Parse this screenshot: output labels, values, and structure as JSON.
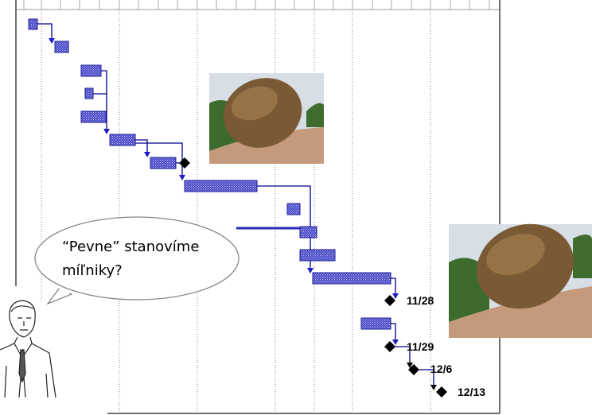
{
  "bubble": {
    "lines": [
      "“Pevne” stanovíme",
      "míľniky?"
    ]
  },
  "milestones": [
    "11/28",
    "11/29",
    "12/6",
    "12/13"
  ]
}
